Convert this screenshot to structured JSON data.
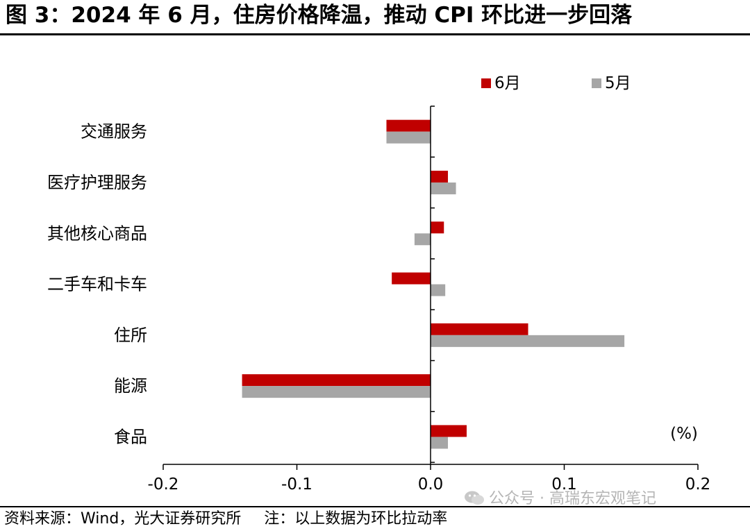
{
  "title": "图 3：2024 年 6 月，住房价格降温，推动 CPI 环比进一步回落",
  "footer": {
    "source": "资料来源：Wind，光大证券研究所",
    "note": "注：以上数据为环比拉动率"
  },
  "watermark": "公众号 · 高瑞东宏观笔记",
  "colors": {
    "june": "#c00000",
    "may": "#a6a6a6"
  },
  "chart_data": {
    "type": "bar",
    "orientation": "horizontal",
    "categories": [
      "交通服务",
      "医疗护理服务",
      "其他核心商品",
      "二手车和卡车",
      "住所",
      "能源",
      "食品"
    ],
    "series": [
      {
        "name": "6月",
        "color": "#c00000",
        "values": [
          -0.033,
          0.013,
          0.01,
          -0.029,
          0.073,
          -0.141,
          0.027
        ]
      },
      {
        "name": "5月",
        "color": "#a6a6a6",
        "values": [
          -0.033,
          0.019,
          -0.012,
          0.011,
          0.145,
          -0.141,
          0.013
        ]
      }
    ],
    "xlim": [
      -0.2,
      0.2
    ],
    "xticks": [
      "-0.2",
      "-0.1",
      "0.0",
      "0.1",
      "0.2"
    ],
    "unit_label": "(%)",
    "legend_position": "top-right",
    "grid": false
  }
}
